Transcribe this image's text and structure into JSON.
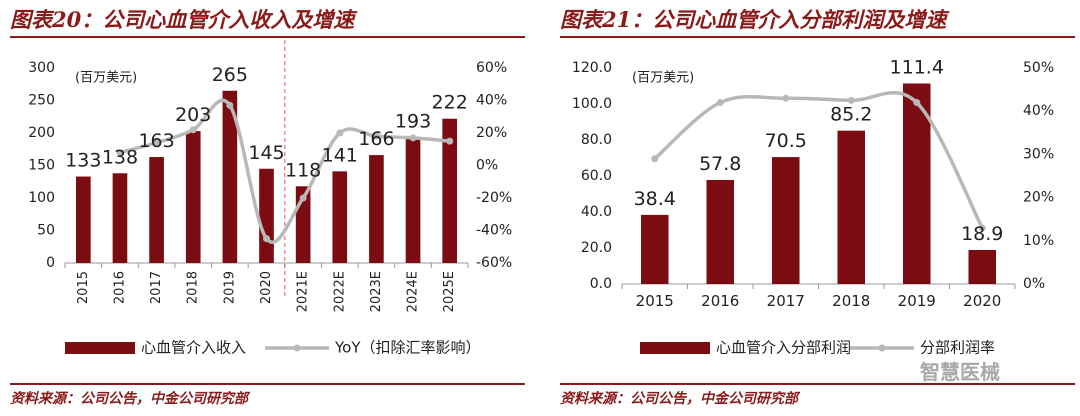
{
  "left": {
    "title": "图表20：公司心血管介入收入及增速",
    "source": "资料来源：公司公告，中金公司研究部"
  },
  "right": {
    "title": "图表21：公司心血管介入分部利润及增速",
    "source": "资料来源：公司公告，中金公司研究部"
  },
  "watermark": "智慧医械",
  "colors": {
    "bar": "#7B0C12",
    "line": "#B8B8B8",
    "accent": "#8B1A1A",
    "divider": "#E05555"
  },
  "chart_data": [
    {
      "type": "bar",
      "unit_label": "(百万美元)",
      "categories": [
        "2015",
        "2016",
        "2017",
        "2018",
        "2019",
        "2020",
        "2021E",
        "2022E",
        "2023E",
        "2024E",
        "2025E"
      ],
      "series": [
        {
          "name": "心血管介入收入",
          "type": "bar",
          "axis": "left",
          "values": [
            133,
            138,
            163,
            203,
            265,
            145,
            118,
            141,
            166,
            193,
            222
          ]
        },
        {
          "name": "YoY（扣除汇率影响）",
          "type": "line",
          "axis": "right",
          "values": [
            null,
            8,
            14,
            22,
            37,
            -45,
            -20,
            20,
            18,
            17,
            15
          ]
        }
      ],
      "ylim": [
        0,
        300
      ],
      "yticks": [
        "0",
        "50",
        "100",
        "150",
        "200",
        "250",
        "300"
      ],
      "y2lim": [
        -60,
        60
      ],
      "y2ticks": [
        "-60%",
        "-40%",
        "-20%",
        "0%",
        "20%",
        "40%",
        "60%"
      ],
      "data_labels": [
        "133",
        "138",
        "163",
        "203",
        "265",
        "145",
        "118",
        "141",
        "166",
        "193",
        "222"
      ],
      "divider_after_index": 5,
      "legend": "bottom"
    },
    {
      "type": "bar",
      "unit_label": "(百万美元)",
      "categories": [
        "2015",
        "2016",
        "2017",
        "2018",
        "2019",
        "2020"
      ],
      "series": [
        {
          "name": "心血管介入分部利润",
          "type": "bar",
          "axis": "left",
          "values": [
            38.4,
            57.8,
            70.5,
            85.2,
            111.4,
            18.9
          ]
        },
        {
          "name": "分部利润率",
          "type": "line",
          "axis": "right",
          "values": [
            29,
            42,
            43,
            42.5,
            42,
            13
          ]
        }
      ],
      "ylim": [
        0,
        120
      ],
      "yticks": [
        "0.0",
        "20.0",
        "40.0",
        "60.0",
        "80.0",
        "100.0",
        "120.0"
      ],
      "y2lim": [
        0,
        50
      ],
      "y2ticks": [
        "0%",
        "10%",
        "20%",
        "30%",
        "40%",
        "50%"
      ],
      "data_labels": [
        "38.4",
        "57.8",
        "70.5",
        "85.2",
        "111.4",
        "18.9"
      ],
      "legend": "bottom"
    }
  ]
}
